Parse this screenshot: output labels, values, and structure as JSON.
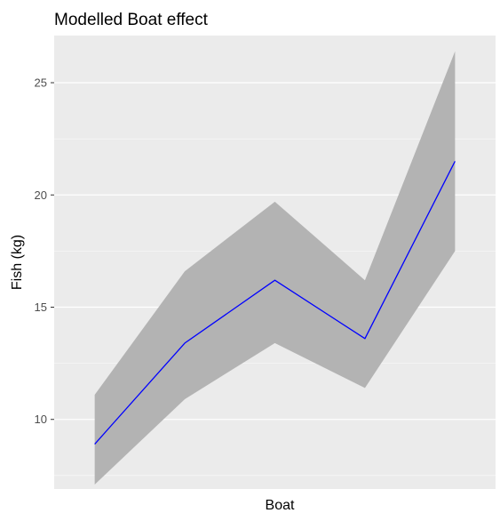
{
  "chart_data": {
    "type": "line",
    "title": "Modelled Boat effect",
    "xlabel": "Boat",
    "ylabel": "Fish (kg)",
    "x": [
      1,
      2,
      3,
      4,
      5
    ],
    "xlim": [
      0.55,
      5.45
    ],
    "ylim": [
      6.9,
      27.1
    ],
    "yticks": [
      10,
      15,
      20,
      25
    ],
    "ytick_labels": [
      "10",
      "15",
      "20",
      "25"
    ],
    "grid": true,
    "series": [
      {
        "values": [
          8.9,
          13.4,
          16.2,
          13.6,
          21.5
        ],
        "lower": [
          7.1,
          10.9,
          13.4,
          11.4,
          17.5
        ],
        "upper": [
          11.1,
          16.6,
          19.7,
          16.2,
          26.4
        ],
        "color": "#0000ff",
        "band_color": "#b3b3b3"
      }
    ],
    "panel_background": "#ebebeb",
    "grid_color": "#ffffff"
  }
}
